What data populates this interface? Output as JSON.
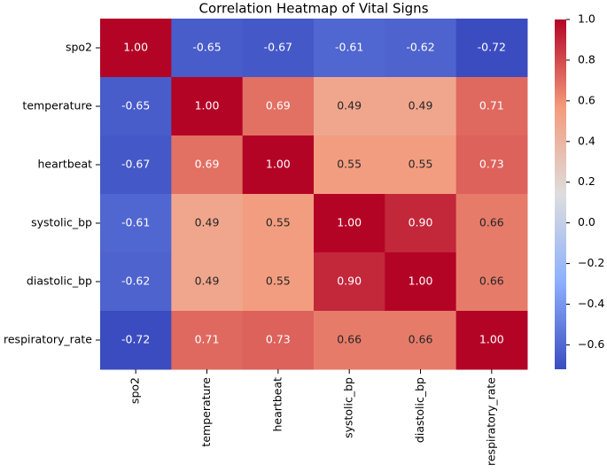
{
  "chart_data": {
    "type": "heatmap",
    "title": "Correlation Heatmap of Vital Signs",
    "categories": [
      "spo2",
      "temperature",
      "heartbeat",
      "systolic_bp",
      "diastolic_bp",
      "respiratory_rate"
    ],
    "row_categories": [
      "spo2",
      "temperature",
      "heartbeat",
      "systolic_bp",
      "diastolic_bp",
      "respiratory_rate"
    ],
    "values": [
      [
        1.0,
        -0.65,
        -0.67,
        -0.61,
        -0.62,
        -0.72
      ],
      [
        -0.65,
        1.0,
        0.69,
        0.49,
        0.49,
        0.71
      ],
      [
        -0.67,
        0.69,
        1.0,
        0.55,
        0.55,
        0.73
      ],
      [
        -0.61,
        0.49,
        0.55,
        1.0,
        0.9,
        0.66
      ],
      [
        -0.62,
        0.49,
        0.55,
        0.9,
        1.0,
        0.66
      ],
      [
        -0.72,
        0.71,
        0.73,
        0.66,
        0.66,
        1.0
      ]
    ],
    "value_labels": [
      [
        "1.00",
        "-0.65",
        "-0.67",
        "-0.61",
        "-0.62",
        "-0.72"
      ],
      [
        "-0.65",
        "1.00",
        "0.69",
        "0.49",
        "0.49",
        "0.71"
      ],
      [
        "-0.67",
        "0.69",
        "1.00",
        "0.55",
        "0.55",
        "0.73"
      ],
      [
        "-0.61",
        "0.49",
        "0.55",
        "1.00",
        "0.90",
        "0.66"
      ],
      [
        "-0.62",
        "0.49",
        "0.55",
        "0.90",
        "1.00",
        "0.66"
      ],
      [
        "-0.72",
        "0.71",
        "0.73",
        "0.66",
        "0.66",
        "1.00"
      ]
    ],
    "colormap": "coolwarm",
    "clim": [
      -0.72,
      1.0
    ],
    "cticks": [
      {
        "value": 1.0,
        "label": "1.0"
      },
      {
        "value": 0.8,
        "label": "0.8"
      },
      {
        "value": 0.6,
        "label": "0.6"
      },
      {
        "value": 0.4,
        "label": "0.4"
      },
      {
        "value": 0.2,
        "label": "0.2"
      },
      {
        "value": 0.0,
        "label": "0.0"
      },
      {
        "value": -0.2,
        "label": "−0.2"
      },
      {
        "value": -0.4,
        "label": "−0.4"
      },
      {
        "value": -0.6,
        "label": "−0.6"
      }
    ]
  }
}
